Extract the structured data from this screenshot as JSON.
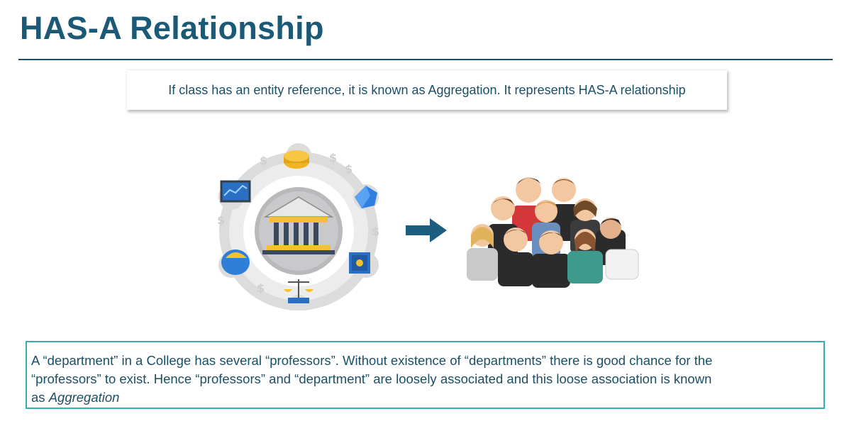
{
  "slide": {
    "title": "HAS-A Relationship",
    "callout": "If class has an entity reference, it is known as Aggregation. It represents HAS-A relationship",
    "definition": {
      "line1": "A  “department” in a College has several “professors”. Without existence of “departments” there is good chance for the",
      "line2": "“professors” to exist. Hence “professors” and “department” are loosely associated and this loose association is known",
      "line3_prefix": "as ",
      "line3_term": "Aggregation"
    }
  },
  "illustrations": {
    "left_icon": "bank-hub-icon",
    "arrow_icon": "arrow-right-icon",
    "right_icon": "people-group-icon"
  },
  "colors": {
    "title": "#1b5a76",
    "text": "#1b4f66",
    "box_border": "#38aeb0",
    "arrow": "#1d5e80"
  }
}
